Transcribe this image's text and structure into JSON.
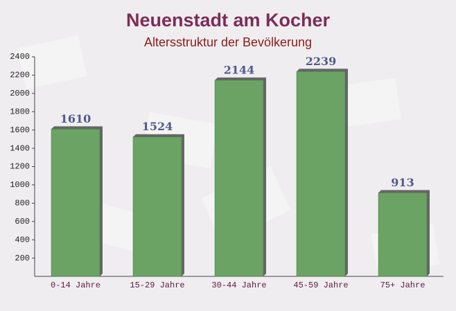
{
  "chart_data": {
    "type": "bar",
    "title": "Neuenstadt am Kocher",
    "subtitle": "Altersstruktur der Bevölkerung",
    "categories": [
      "0-14 Jahre",
      "15-29 Jahre",
      "30-44 Jahre",
      "45-59 Jahre",
      "75+ Jahre"
    ],
    "values": [
      1610,
      1524,
      2144,
      2239,
      913
    ],
    "color": "#6aa364",
    "ylim": [
      0,
      2400
    ],
    "yticks": [
      200,
      400,
      600,
      800,
      1000,
      1200,
      1400,
      1600,
      1800,
      2000,
      2200,
      2400
    ],
    "grid": false
  }
}
